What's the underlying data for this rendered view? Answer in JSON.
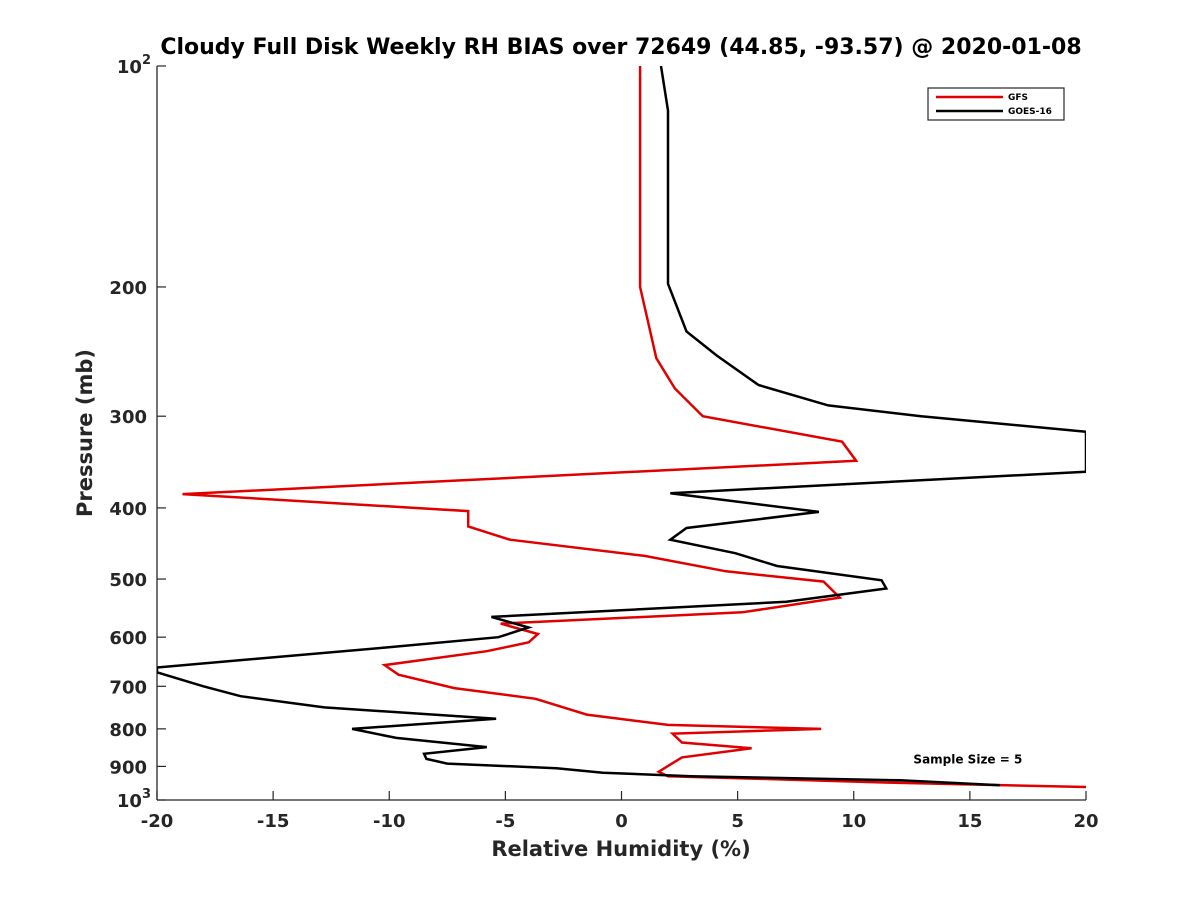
{
  "chart_data": {
    "type": "line",
    "title": "Cloudy Full Disk Weekly RH BIAS over 72649 (44.85, -93.57) @ 2020-01-08",
    "xlabel": "Relative Humidity (%)",
    "ylabel": "Pressure (mb)",
    "xlim": [
      -20,
      20
    ],
    "ylim": [
      100,
      1000
    ],
    "y_scale": "log",
    "y_reversed": true,
    "grid": false,
    "legend_position": "top-right",
    "x_ticks": [
      {
        "value": -20,
        "label": "-20"
      },
      {
        "value": -15,
        "label": "-15"
      },
      {
        "value": -10,
        "label": "-10"
      },
      {
        "value": -5,
        "label": "-5"
      },
      {
        "value": 0,
        "label": "0"
      },
      {
        "value": 5,
        "label": "5"
      },
      {
        "value": 10,
        "label": "10"
      },
      {
        "value": 15,
        "label": "15"
      },
      {
        "value": 20,
        "label": "20"
      }
    ],
    "y_ticks": [
      {
        "value": 100,
        "base": "10",
        "exp": "2"
      },
      {
        "value": 200,
        "base": "200",
        "exp": ""
      },
      {
        "value": 300,
        "base": "300",
        "exp": ""
      },
      {
        "value": 400,
        "base": "400",
        "exp": ""
      },
      {
        "value": 500,
        "base": "500",
        "exp": ""
      },
      {
        "value": 600,
        "base": "600",
        "exp": ""
      },
      {
        "value": 700,
        "base": "700",
        "exp": ""
      },
      {
        "value": 800,
        "base": "800",
        "exp": ""
      },
      {
        "value": 900,
        "base": "900",
        "exp": ""
      },
      {
        "value": 1000,
        "base": "10",
        "exp": "3"
      }
    ],
    "series": [
      {
        "name": "GFS",
        "color": "#e00000",
        "points": [
          [
            0.8,
            100
          ],
          [
            0.8,
            150
          ],
          [
            0.8,
            200
          ],
          [
            1.5,
            250
          ],
          [
            2.3,
            275
          ],
          [
            3.5,
            300
          ],
          [
            9.5,
            325
          ],
          [
            10.1,
            345
          ],
          [
            -18.9,
            383
          ],
          [
            -6.6,
            404
          ],
          [
            -6.6,
            424
          ],
          [
            -4.8,
            442
          ],
          [
            1.0,
            465
          ],
          [
            4.5,
            488
          ],
          [
            8.7,
            504
          ],
          [
            9.4,
            530
          ],
          [
            5.2,
            555
          ],
          [
            -5.2,
            575
          ],
          [
            -3.6,
            594
          ],
          [
            -4.0,
            610
          ],
          [
            -5.8,
            627
          ],
          [
            -10.2,
            655
          ],
          [
            -9.6,
            675
          ],
          [
            -7.2,
            704
          ],
          [
            -3.7,
            728
          ],
          [
            -1.5,
            765
          ],
          [
            2.0,
            790
          ],
          [
            8.6,
            800
          ],
          [
            2.2,
            812
          ],
          [
            2.6,
            835
          ],
          [
            5.6,
            850
          ],
          [
            2.6,
            875
          ],
          [
            1.6,
            915
          ],
          [
            2.0,
            928
          ],
          [
            6.0,
            936
          ],
          [
            11.5,
            947
          ],
          [
            20.0,
            960
          ]
        ]
      },
      {
        "name": "GOES-16",
        "color": "#000000",
        "points": [
          [
            1.7,
            100
          ],
          [
            2.0,
            115
          ],
          [
            2.0,
            150
          ],
          [
            2.0,
            198
          ],
          [
            2.8,
            230
          ],
          [
            4.1,
            248
          ],
          [
            5.9,
            272
          ],
          [
            8.9,
            290
          ],
          [
            12.9,
            300
          ],
          [
            20.0,
            315
          ],
          [
            20.0,
            357
          ],
          [
            2.1,
            382
          ],
          [
            8.5,
            405
          ],
          [
            2.8,
            426
          ],
          [
            2.1,
            442
          ],
          [
            4.9,
            461
          ],
          [
            6.7,
            480
          ],
          [
            11.2,
            502
          ],
          [
            11.4,
            515
          ],
          [
            7.1,
            537
          ],
          [
            -5.6,
            563
          ],
          [
            -4.0,
            582
          ],
          [
            -5.3,
            600
          ],
          [
            -10.2,
            620
          ],
          [
            -20.0,
            660
          ],
          [
            -20.0,
            670
          ],
          [
            -18.0,
            700
          ],
          [
            -16.4,
            722
          ],
          [
            -12.8,
            748
          ],
          [
            -5.4,
            775
          ],
          [
            -11.6,
            800
          ],
          [
            -9.7,
            823
          ],
          [
            -5.8,
            847
          ],
          [
            -8.5,
            865
          ],
          [
            -8.4,
            879
          ],
          [
            -7.5,
            892
          ],
          [
            -2.8,
            905
          ],
          [
            -0.8,
            918
          ],
          [
            3.0,
            928
          ],
          [
            12.0,
            940
          ],
          [
            16.3,
            955
          ]
        ]
      }
    ],
    "annotations": [
      {
        "text": "Sample Size = 5",
        "x": 15,
        "y": 880
      }
    ]
  }
}
